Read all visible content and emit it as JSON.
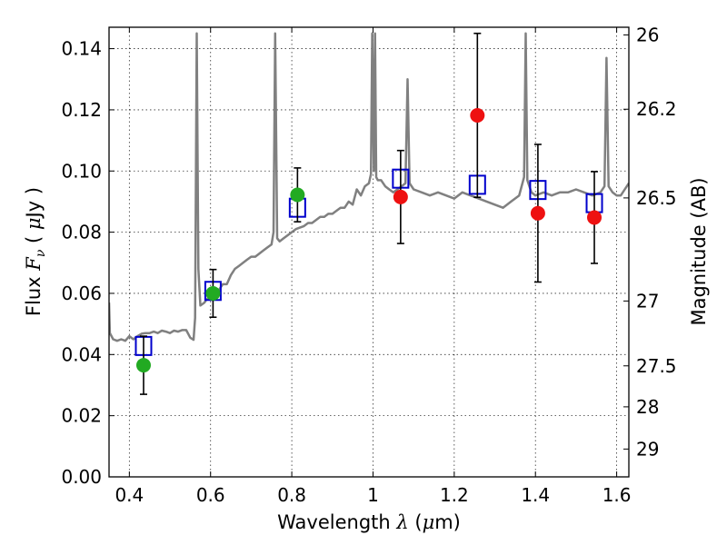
{
  "chart_data": {
    "type": "scatter",
    "xlabel": "Wavelength  λ (μm)",
    "ylabel": "Flux  F_ν  ( μJy )",
    "ylabel_parts": {
      "pre": "Flux  ",
      "sym": "F",
      "sub": "ν",
      "post": "  ( ",
      "mu": "μ",
      "unit": "Jy )"
    },
    "xlabel_parts": {
      "pre": "Wavelength  ",
      "sym": "λ",
      "post": " (",
      "mu": "μ",
      "unit": "m)"
    },
    "y2label": "Magnitude (AB)",
    "xlim": [
      0.35,
      1.63
    ],
    "ylim": [
      0,
      0.147
    ],
    "x_ticks": [
      0.4,
      0.6,
      0.8,
      1.0,
      1.2,
      1.4,
      1.6
    ],
    "x_tick_labels": [
      "0.4",
      "0.6",
      "0.8",
      "1",
      "1.2",
      "1.4",
      "1.6"
    ],
    "y_ticks": [
      0.0,
      0.02,
      0.04,
      0.06,
      0.08,
      0.1,
      0.12,
      0.14
    ],
    "y_tick_labels": [
      "0.00",
      "0.02",
      "0.04",
      "0.06",
      "0.08",
      "0.10",
      "0.12",
      "0.14"
    ],
    "y2_ticks": [
      {
        "label": "26",
        "flux": 0.1445
      },
      {
        "label": "26.2",
        "flux": 0.1202
      },
      {
        "label": "26.5",
        "flux": 0.0912
      },
      {
        "label": "27",
        "flux": 0.0575
      },
      {
        "label": "27.5",
        "flux": 0.0363
      },
      {
        "label": "28",
        "flux": 0.0229
      },
      {
        "label": "29",
        "flux": 0.0091
      }
    ],
    "grid": true,
    "colors": {
      "template": "#808080",
      "model": "#0000cc",
      "green": "#22aa22",
      "red": "#ee1111",
      "errorbar": "#000000"
    },
    "series": [
      {
        "kind": "observed",
        "points": [
          {
            "x": 0.435,
            "y": 0.0365,
            "err": 0.0095,
            "color": "green"
          },
          {
            "x": 0.606,
            "y": 0.06,
            "err": 0.0078,
            "color": "green"
          },
          {
            "x": 0.814,
            "y": 0.0922,
            "err": 0.0088,
            "color": "green"
          },
          {
            "x": 1.068,
            "y": 0.0915,
            "err": 0.0152,
            "color": "red"
          },
          {
            "x": 1.257,
            "y": 0.1182,
            "err": 0.0268,
            "color": "red"
          },
          {
            "x": 1.406,
            "y": 0.0862,
            "err": 0.0225,
            "color": "red"
          },
          {
            "x": 1.545,
            "y": 0.0848,
            "err": 0.015,
            "color": "red"
          }
        ]
      },
      {
        "kind": "model",
        "points": [
          {
            "x": 0.435,
            "y": 0.0428
          },
          {
            "x": 0.606,
            "y": 0.0608
          },
          {
            "x": 0.814,
            "y": 0.088
          },
          {
            "x": 1.068,
            "y": 0.0975
          },
          {
            "x": 1.257,
            "y": 0.0955
          },
          {
            "x": 1.406,
            "y": 0.0938
          },
          {
            "x": 1.545,
            "y": 0.0895
          }
        ]
      },
      {
        "kind": "template",
        "points": [
          [
            0.35,
            0.057
          ],
          [
            0.352,
            0.047
          ],
          [
            0.36,
            0.045
          ],
          [
            0.37,
            0.0445
          ],
          [
            0.38,
            0.045
          ],
          [
            0.39,
            0.0445
          ],
          [
            0.4,
            0.046
          ],
          [
            0.41,
            0.045
          ],
          [
            0.42,
            0.046
          ],
          [
            0.43,
            0.0468
          ],
          [
            0.44,
            0.047
          ],
          [
            0.45,
            0.047
          ],
          [
            0.46,
            0.0475
          ],
          [
            0.47,
            0.047
          ],
          [
            0.48,
            0.0478
          ],
          [
            0.49,
            0.0475
          ],
          [
            0.5,
            0.047
          ],
          [
            0.51,
            0.0478
          ],
          [
            0.52,
            0.0475
          ],
          [
            0.53,
            0.048
          ],
          [
            0.54,
            0.048
          ],
          [
            0.55,
            0.0455
          ],
          [
            0.558,
            0.0448
          ],
          [
            0.562,
            0.052
          ],
          [
            0.566,
            0.145
          ],
          [
            0.57,
            0.068
          ],
          [
            0.575,
            0.056
          ],
          [
            0.585,
            0.057
          ],
          [
            0.59,
            0.058
          ],
          [
            0.6,
            0.059
          ],
          [
            0.61,
            0.06
          ],
          [
            0.62,
            0.061
          ],
          [
            0.63,
            0.063
          ],
          [
            0.64,
            0.063
          ],
          [
            0.65,
            0.066
          ],
          [
            0.66,
            0.068
          ],
          [
            0.67,
            0.069
          ],
          [
            0.68,
            0.07
          ],
          [
            0.69,
            0.071
          ],
          [
            0.7,
            0.072
          ],
          [
            0.71,
            0.072
          ],
          [
            0.72,
            0.073
          ],
          [
            0.73,
            0.074
          ],
          [
            0.74,
            0.075
          ],
          [
            0.75,
            0.076
          ],
          [
            0.755,
            0.08
          ],
          [
            0.759,
            0.145
          ],
          [
            0.764,
            0.078
          ],
          [
            0.77,
            0.077
          ],
          [
            0.78,
            0.078
          ],
          [
            0.79,
            0.079
          ],
          [
            0.8,
            0.08
          ],
          [
            0.81,
            0.081
          ],
          [
            0.82,
            0.0815
          ],
          [
            0.83,
            0.082
          ],
          [
            0.84,
            0.083
          ],
          [
            0.85,
            0.083
          ],
          [
            0.86,
            0.084
          ],
          [
            0.87,
            0.085
          ],
          [
            0.88,
            0.085
          ],
          [
            0.89,
            0.086
          ],
          [
            0.9,
            0.086
          ],
          [
            0.91,
            0.087
          ],
          [
            0.92,
            0.088
          ],
          [
            0.93,
            0.088
          ],
          [
            0.94,
            0.09
          ],
          [
            0.95,
            0.089
          ],
          [
            0.96,
            0.094
          ],
          [
            0.97,
            0.092
          ],
          [
            0.98,
            0.095
          ],
          [
            0.99,
            0.096
          ],
          [
            0.995,
            0.099
          ],
          [
            0.998,
            0.145
          ],
          [
            1.002,
            0.1
          ],
          [
            1.005,
            0.145
          ],
          [
            1.008,
            0.098
          ],
          [
            1.012,
            0.097
          ],
          [
            1.02,
            0.097
          ],
          [
            1.03,
            0.095
          ],
          [
            1.04,
            0.094
          ],
          [
            1.05,
            0.093
          ],
          [
            1.06,
            0.094
          ],
          [
            1.07,
            0.095
          ],
          [
            1.08,
            0.096
          ],
          [
            1.085,
            0.13
          ],
          [
            1.09,
            0.096
          ],
          [
            1.1,
            0.094
          ],
          [
            1.12,
            0.093
          ],
          [
            1.14,
            0.092
          ],
          [
            1.16,
            0.093
          ],
          [
            1.18,
            0.092
          ],
          [
            1.2,
            0.091
          ],
          [
            1.22,
            0.093
          ],
          [
            1.24,
            0.092
          ],
          [
            1.26,
            0.091
          ],
          [
            1.28,
            0.09
          ],
          [
            1.3,
            0.089
          ],
          [
            1.32,
            0.088
          ],
          [
            1.34,
            0.09
          ],
          [
            1.36,
            0.092
          ],
          [
            1.372,
            0.098
          ],
          [
            1.376,
            0.145
          ],
          [
            1.38,
            0.097
          ],
          [
            1.39,
            0.093
          ],
          [
            1.4,
            0.092
          ],
          [
            1.42,
            0.093
          ],
          [
            1.44,
            0.092
          ],
          [
            1.46,
            0.093
          ],
          [
            1.48,
            0.093
          ],
          [
            1.5,
            0.094
          ],
          [
            1.52,
            0.093
          ],
          [
            1.54,
            0.092
          ],
          [
            1.56,
            0.093
          ],
          [
            1.57,
            0.095
          ],
          [
            1.575,
            0.137
          ],
          [
            1.58,
            0.095
          ],
          [
            1.59,
            0.093
          ],
          [
            1.6,
            0.092
          ],
          [
            1.61,
            0.092
          ],
          [
            1.62,
            0.094
          ],
          [
            1.63,
            0.096
          ]
        ]
      }
    ]
  }
}
